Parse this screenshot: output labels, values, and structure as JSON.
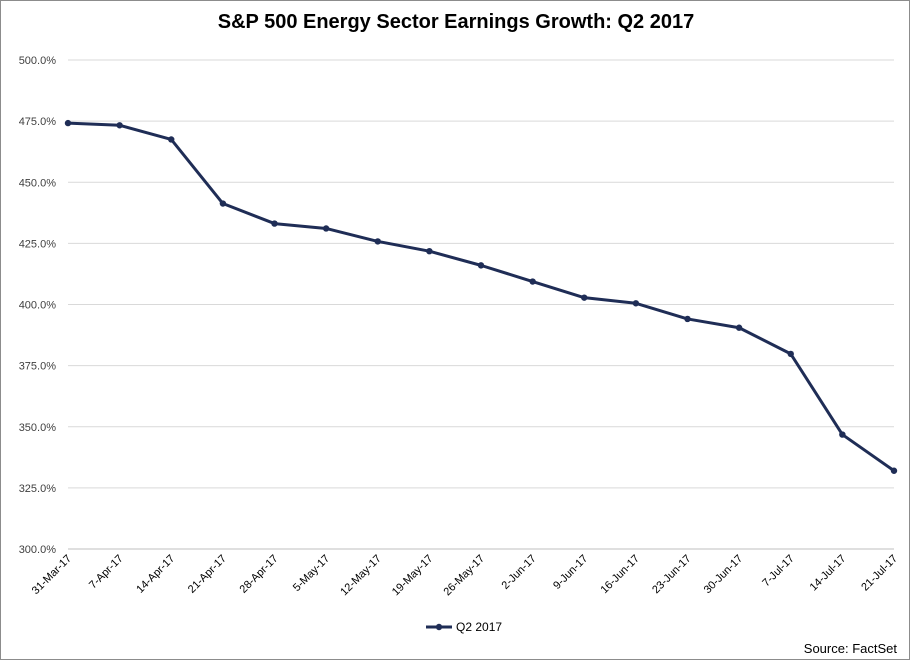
{
  "chart_data": {
    "type": "line",
    "title": "S&P 500 Energy Sector Earnings Growth: Q2 2017",
    "source": "Source: FactSet",
    "xlabel": "",
    "ylabel": "",
    "ylim": [
      300,
      500
    ],
    "y_ticks": [
      300,
      325,
      350,
      375,
      400,
      425,
      450,
      475,
      500
    ],
    "y_tick_labels": [
      "300.0%",
      "325.0%",
      "350.0%",
      "375.0%",
      "400.0%",
      "425.0%",
      "450.0%",
      "475.0%",
      "500.0%"
    ],
    "grid": true,
    "legend_position": "bottom-center",
    "categories": [
      "31-Mar-17",
      "7-Apr-17",
      "14-Apr-17",
      "21-Apr-17",
      "28-Apr-17",
      "5-May-17",
      "12-May-17",
      "19-May-17",
      "26-May-17",
      "2-Jun-17",
      "9-Jun-17",
      "16-Jun-17",
      "23-Jun-17",
      "30-Jun-17",
      "7-Jul-17",
      "14-Jul-17",
      "21-Jul-17"
    ],
    "series": [
      {
        "name": "Q2 2017",
        "color": "#1f2d56",
        "values": [
          474.2,
          473.3,
          467.5,
          441.3,
          433.1,
          431.1,
          425.8,
          421.8,
          416.0,
          409.4,
          402.8,
          400.5,
          394.1,
          390.5,
          379.8,
          346.8,
          332.0
        ]
      }
    ]
  }
}
